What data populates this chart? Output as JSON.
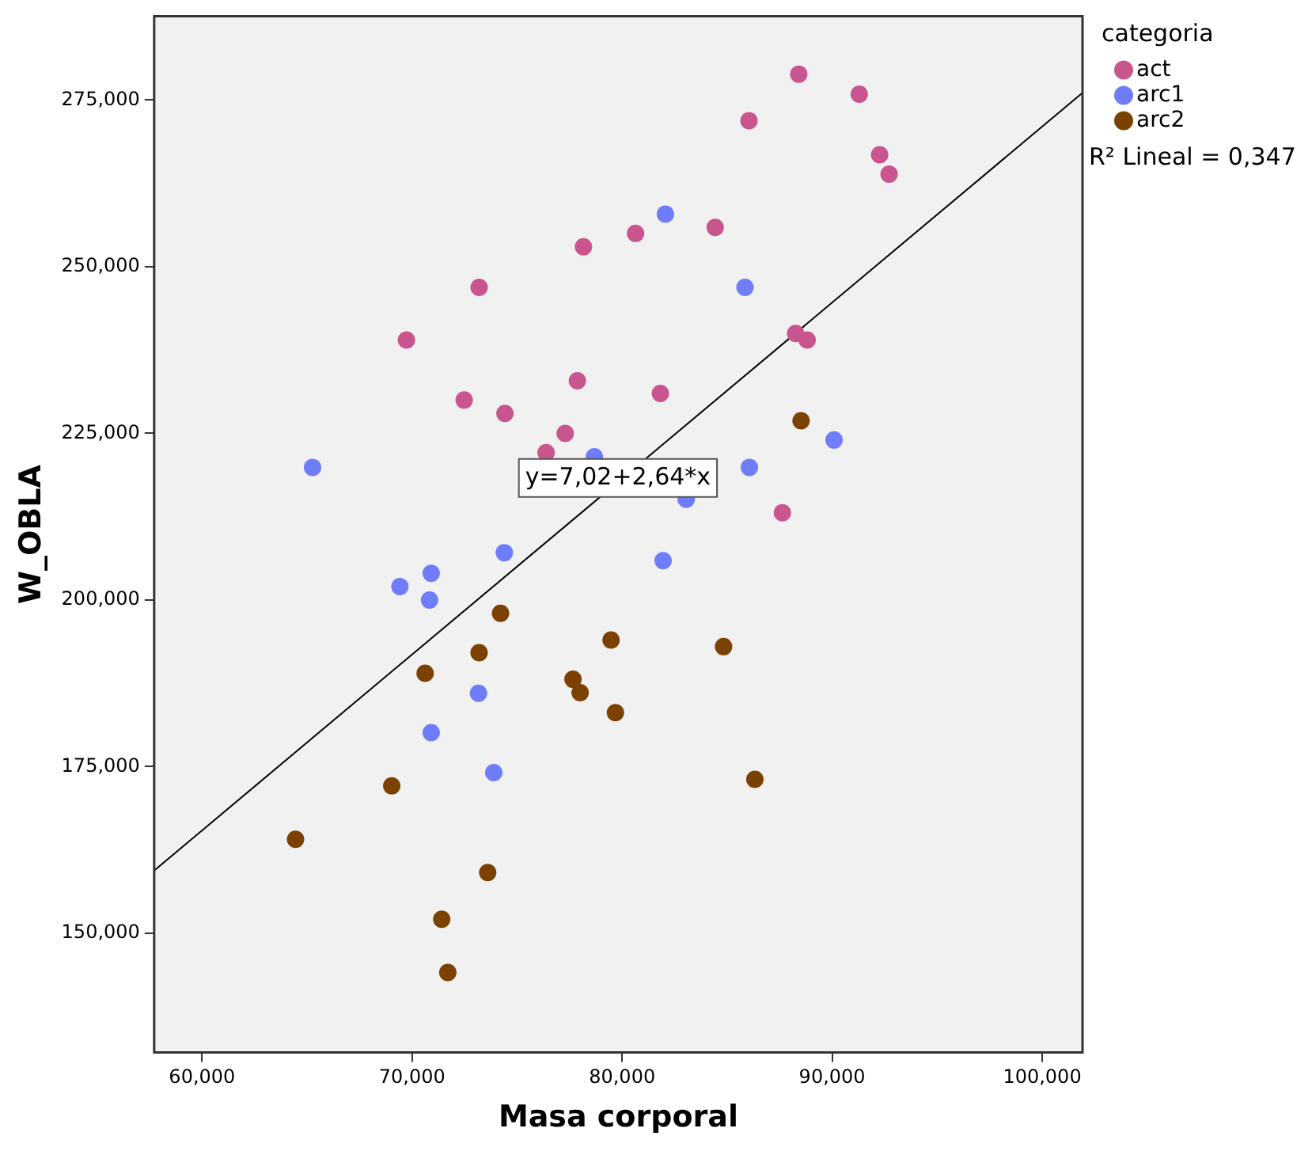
{
  "chart_data": {
    "type": "scatter",
    "xlabel": "Masa corporal",
    "ylabel": "W_OBLA",
    "legend_title": "categoria",
    "legend": "top right",
    "grid": false,
    "marker": "circle",
    "xlim": [
      57.72,
      101.92
    ],
    "ylim": [
      132.1,
      287.6
    ],
    "xticks": [
      {
        "value": 60,
        "label": "60,000"
      },
      {
        "value": 70,
        "label": "70,000"
      },
      {
        "value": 80,
        "label": "80,000"
      },
      {
        "value": 90,
        "label": "90,000"
      },
      {
        "value": 100,
        "label": "100,000"
      }
    ],
    "yticks": [
      {
        "value": 150,
        "label": "150,000"
      },
      {
        "value": 175,
        "label": "175,000"
      },
      {
        "value": 200,
        "label": "200,000"
      },
      {
        "value": 225,
        "label": "225,000"
      },
      {
        "value": 250,
        "label": "250,000"
      },
      {
        "value": 275,
        "label": "275,000"
      }
    ],
    "series": [
      {
        "name": "act",
        "color": "#c9558f",
        "x": [
          88.41,
          91.29,
          86.04,
          92.26,
          92.71,
          84.43,
          80.64,
          78.16,
          73.19,
          69.73,
          88.26,
          88.81,
          77.87,
          72.48,
          74.42,
          81.82,
          77.29,
          76.38,
          87.63
        ],
        "values": [
          278.9,
          275.9,
          271.9,
          266.8,
          263.9,
          255.9,
          255.0,
          253.0,
          246.9,
          239.0,
          240.0,
          239.0,
          232.9,
          230.0,
          228.0,
          231.0,
          225.0,
          222.1,
          213.1
        ]
      },
      {
        "name": "arc1",
        "color": "#6f7dfb",
        "x": [
          82.06,
          85.85,
          90.09,
          65.26,
          78.68,
          86.06,
          83.05,
          74.39,
          70.91,
          69.42,
          70.83,
          81.95,
          73.16,
          70.91,
          73.89
        ],
        "values": [
          257.9,
          246.9,
          224.0,
          219.9,
          221.5,
          219.9,
          215.1,
          207.1,
          204.0,
          202.0,
          200.0,
          205.9,
          186.0,
          180.1,
          174.1
        ]
      },
      {
        "name": "arc2",
        "color": "#7a4100",
        "x": [
          88.52,
          74.21,
          73.19,
          70.62,
          79.47,
          84.83,
          77.66,
          78.0,
          79.68,
          69.03,
          86.32,
          64.45,
          73.6,
          71.41,
          71.7
        ],
        "values": [
          226.9,
          198.0,
          192.1,
          189.0,
          194.0,
          193.0,
          188.1,
          186.1,
          183.1,
          172.1,
          173.1,
          164.1,
          159.1,
          152.1,
          144.1
        ]
      },
      {
        "type": "line",
        "color": "#000000",
        "marker": "none",
        "x": [
          57.72,
          101.92
        ],
        "values": [
          159.4,
          276.1
        ]
      }
    ],
    "annotations": [
      {
        "text": "y=7,02+2,64*x",
        "x": 79.8,
        "y": 218.3
      },
      "R² Lineal = 0,347"
    ]
  }
}
